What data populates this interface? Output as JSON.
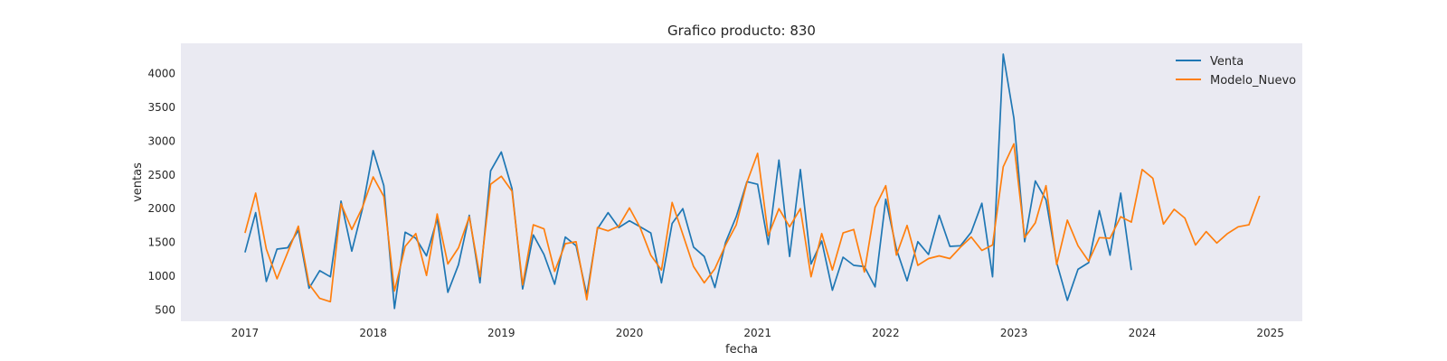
{
  "chart_data": {
    "type": "line",
    "title": "Grafico producto: 830",
    "xlabel": "fecha",
    "ylabel": "ventas",
    "x_ticks": [
      "2017",
      "2018",
      "2019",
      "2020",
      "2021",
      "2022",
      "2023",
      "2024",
      "2025"
    ],
    "y_ticks": [
      500,
      1000,
      1500,
      2000,
      2500,
      3000,
      3500,
      4000
    ],
    "xlim": [
      "2016-07",
      "2025-04"
    ],
    "ylim": [
      330,
      4450
    ],
    "grid": false,
    "legend_position": "top-right",
    "background_color": "#eaeaf2",
    "series": [
      {
        "name": "Venta",
        "color": "#1f77b4",
        "start": "2017-01",
        "values": [
          1350,
          1940,
          920,
          1400,
          1420,
          1680,
          820,
          1080,
          990,
          2110,
          1370,
          2000,
          2860,
          2340,
          520,
          1650,
          1560,
          1300,
          1850,
          760,
          1170,
          1900,
          900,
          2560,
          2840,
          2300,
          810,
          1610,
          1320,
          880,
          1580,
          1450,
          720,
          1700,
          1940,
          1720,
          1820,
          1730,
          1640,
          900,
          1780,
          2000,
          1430,
          1290,
          830,
          1500,
          1880,
          2400,
          2360,
          1470,
          2720,
          1290,
          2580,
          1180,
          1520,
          790,
          1280,
          1160,
          1140,
          840,
          2140,
          1400,
          930,
          1510,
          1320,
          1900,
          1440,
          1450,
          1650,
          2080,
          990,
          4290,
          3340,
          1510,
          2410,
          2130,
          1200,
          640,
          1100,
          1200,
          1970,
          1310,
          2230,
          1090
        ]
      },
      {
        "name": "Modelo_Nuevo",
        "color": "#ff7f0e",
        "start": "2017-01",
        "values": [
          1640,
          2230,
          1400,
          960,
          1350,
          1740,
          880,
          670,
          620,
          2070,
          1690,
          2020,
          2470,
          2180,
          780,
          1440,
          1630,
          1010,
          1920,
          1180,
          1420,
          1880,
          990,
          2360,
          2480,
          2260,
          870,
          1760,
          1700,
          1070,
          1480,
          1510,
          650,
          1720,
          1670,
          1740,
          2010,
          1720,
          1310,
          1090,
          2090,
          1620,
          1140,
          900,
          1110,
          1460,
          1760,
          2390,
          2820,
          1600,
          2000,
          1730,
          2000,
          990,
          1630,
          1090,
          1640,
          1690,
          1060,
          2020,
          2340,
          1310,
          1750,
          1160,
          1260,
          1300,
          1260,
          1430,
          1580,
          1380,
          1460,
          2620,
          2960,
          1570,
          1790,
          2340,
          1170,
          1830,
          1450,
          1220,
          1570,
          1560,
          1880,
          1800,
          2580,
          2450,
          1770,
          1990,
          1860,
          1460,
          1660,
          1490,
          1630,
          1730,
          1760,
          2190
        ]
      }
    ]
  }
}
